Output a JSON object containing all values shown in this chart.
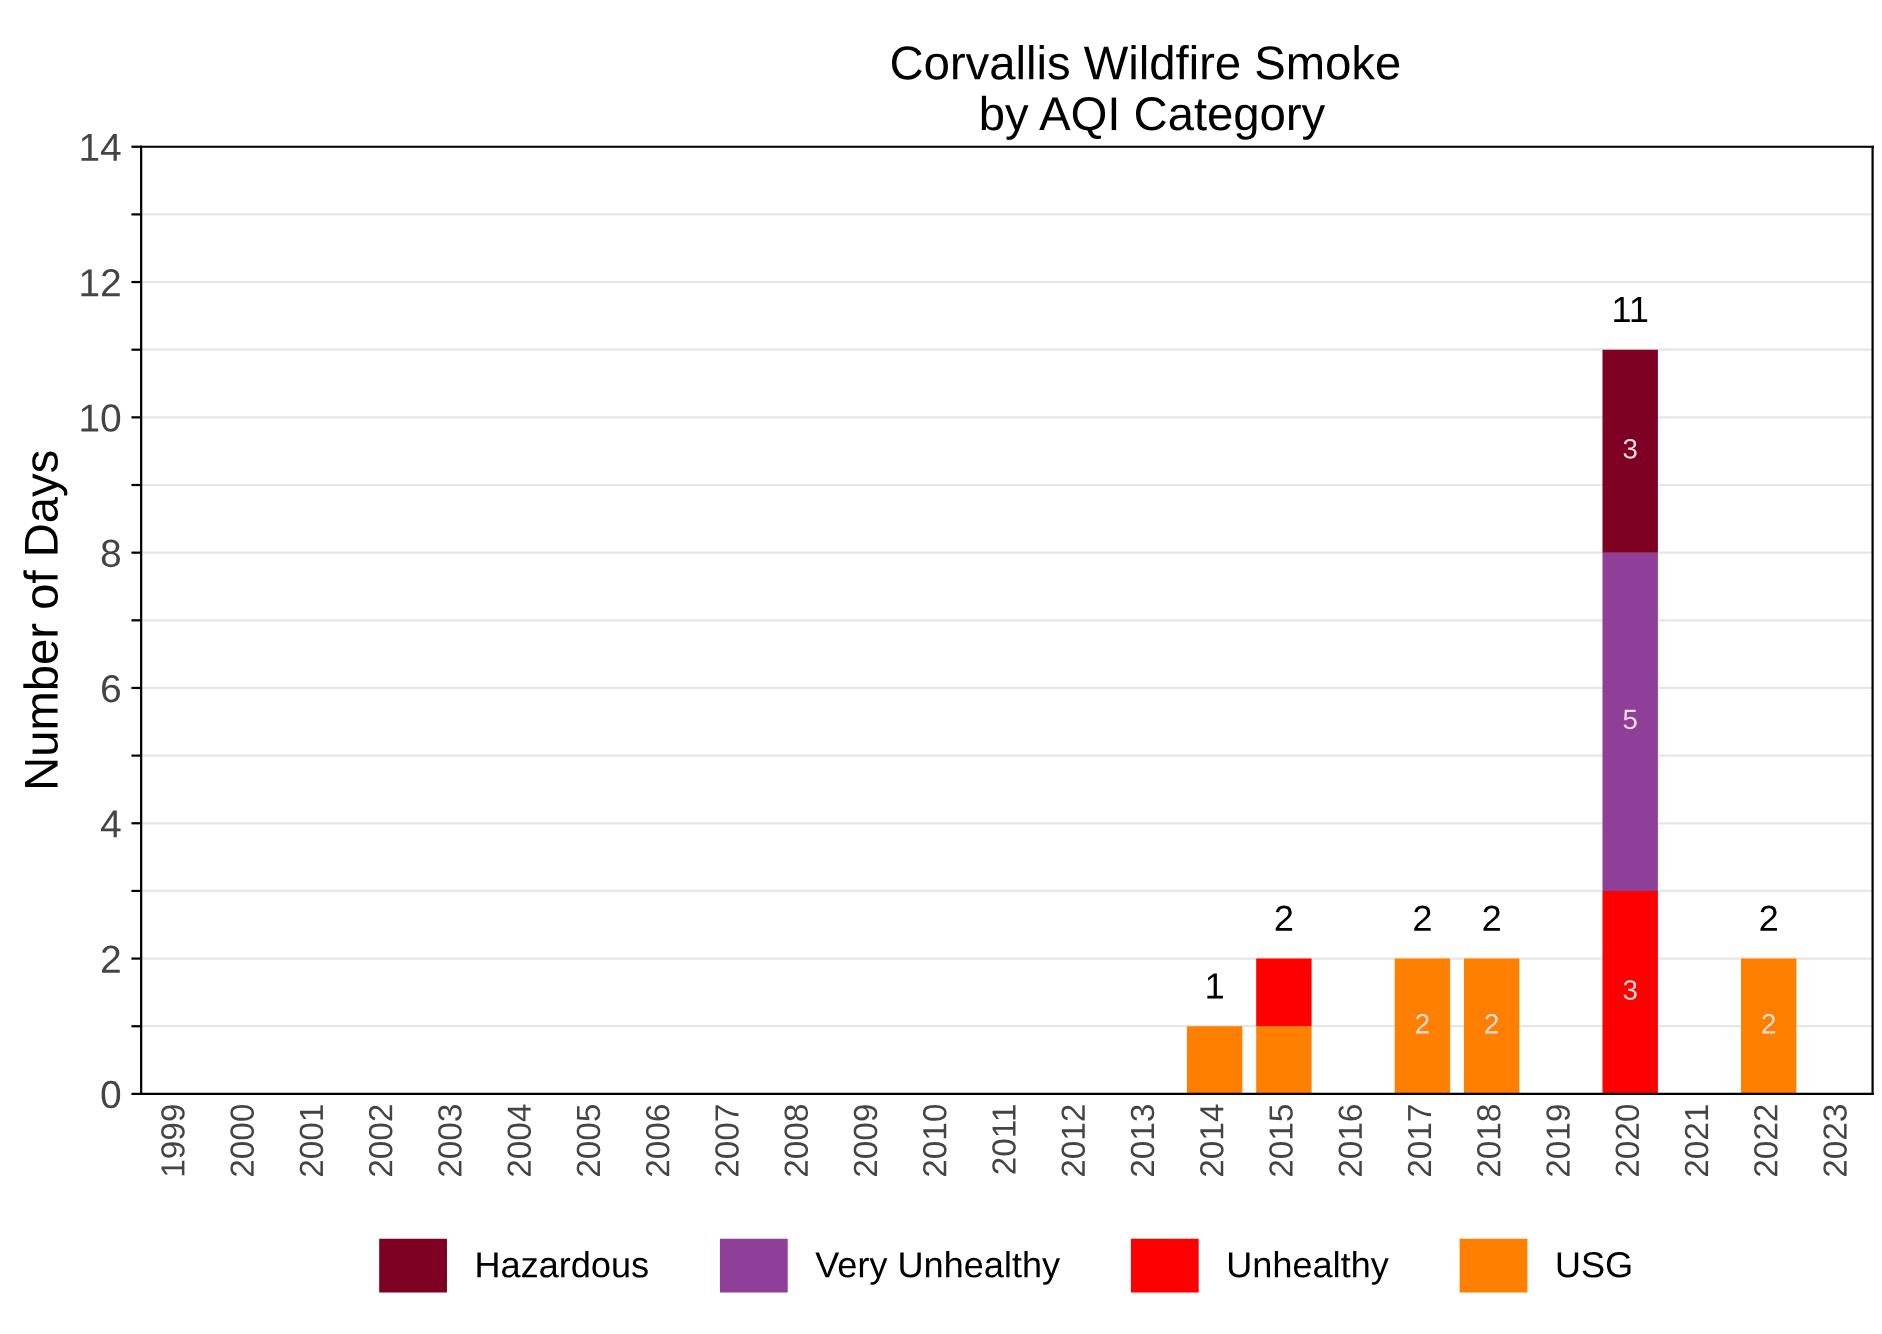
{
  "chart_data": {
    "type": "bar",
    "stacked": true,
    "title": "Corvallis Wildfire Smoke\n by AQI Category",
    "ylabel": "Number of Days",
    "categories": [
      "1999",
      "2000",
      "2001",
      "2002",
      "2003",
      "2004",
      "2005",
      "2006",
      "2007",
      "2008",
      "2009",
      "2010",
      "2011",
      "2012",
      "2013",
      "2014",
      "2015",
      "2016",
      "2017",
      "2018",
      "2019",
      "2020",
      "2021",
      "2022",
      "2023"
    ],
    "series": [
      {
        "name": "USG",
        "color": "#ff7f00",
        "values": [
          0,
          0,
          0,
          0,
          0,
          0,
          0,
          0,
          0,
          0,
          0,
          0,
          0,
          0,
          0,
          1,
          1,
          0,
          2,
          2,
          0,
          0,
          0,
          2,
          0
        ],
        "value_labels": [
          null,
          null,
          null,
          null,
          null,
          null,
          null,
          null,
          null,
          null,
          null,
          null,
          null,
          null,
          null,
          null,
          null,
          null,
          "2",
          "2",
          null,
          null,
          null,
          "2",
          null
        ]
      },
      {
        "name": "Unhealthy",
        "color": "#ff0000",
        "values": [
          0,
          0,
          0,
          0,
          0,
          0,
          0,
          0,
          0,
          0,
          0,
          0,
          0,
          0,
          0,
          0,
          1,
          0,
          0,
          0,
          0,
          3,
          0,
          0,
          0
        ],
        "value_labels": [
          null,
          null,
          null,
          null,
          null,
          null,
          null,
          null,
          null,
          null,
          null,
          null,
          null,
          null,
          null,
          null,
          null,
          null,
          null,
          null,
          null,
          "3",
          null,
          null,
          null
        ]
      },
      {
        "name": "Very Unhealthy",
        "color": "#8f3f97",
        "values": [
          0,
          0,
          0,
          0,
          0,
          0,
          0,
          0,
          0,
          0,
          0,
          0,
          0,
          0,
          0,
          0,
          0,
          0,
          0,
          0,
          0,
          5,
          0,
          0,
          0
        ],
        "value_labels": [
          null,
          null,
          null,
          null,
          null,
          null,
          null,
          null,
          null,
          null,
          null,
          null,
          null,
          null,
          null,
          null,
          null,
          null,
          null,
          null,
          null,
          "5",
          null,
          null,
          null
        ]
      },
      {
        "name": "Hazardous",
        "color": "#7e0023",
        "values": [
          0,
          0,
          0,
          0,
          0,
          0,
          0,
          0,
          0,
          0,
          0,
          0,
          0,
          0,
          0,
          0,
          0,
          0,
          0,
          0,
          0,
          3,
          0,
          0,
          0
        ],
        "value_labels": [
          null,
          null,
          null,
          null,
          null,
          null,
          null,
          null,
          null,
          null,
          null,
          null,
          null,
          null,
          null,
          null,
          null,
          null,
          null,
          null,
          null,
          "3",
          null,
          null,
          null
        ]
      }
    ],
    "totals": [
      null,
      null,
      null,
      null,
      null,
      null,
      null,
      null,
      null,
      null,
      null,
      null,
      null,
      null,
      null,
      "1",
      "2",
      null,
      "2",
      "2",
      null,
      "11",
      null,
      "2",
      null
    ],
    "ylim": [
      0,
      14
    ],
    "yticks": [
      0,
      {
        "value": 1,
        "label": null
      },
      2,
      {
        "value": 3,
        "label": null
      },
      4,
      {
        "value": 5,
        "label": null
      },
      6,
      {
        "value": 7,
        "label": null
      },
      8,
      {
        "value": 9,
        "label": null
      },
      10,
      {
        "value": 11,
        "label": null
      },
      12,
      {
        "value": 13,
        "label": null
      },
      14
    ],
    "grid": "y",
    "legend": "bottom"
  }
}
